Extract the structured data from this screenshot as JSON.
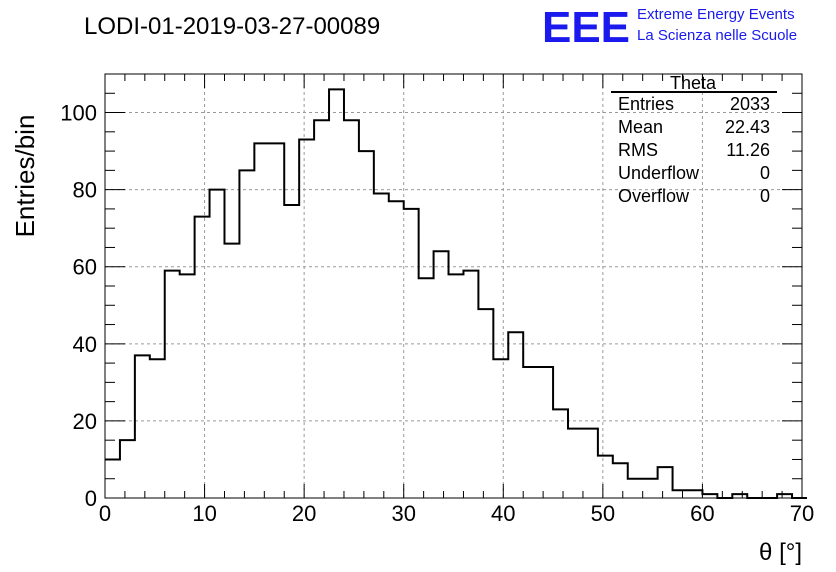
{
  "logo": {
    "mark": "EEE",
    "line1": "Extreme Energy Events",
    "line2": "La Scienza nelle Scuole",
    "color": "#1a1aee"
  },
  "stats": {
    "title": "Theta",
    "rows": [
      {
        "label": "Entries",
        "value": "2033"
      },
      {
        "label": "Mean",
        "value": "22.43"
      },
      {
        "label": "RMS",
        "value": "11.26"
      },
      {
        "label": "Underflow",
        "value": "0"
      },
      {
        "label": "Overflow",
        "value": "0"
      }
    ]
  },
  "chart_data": {
    "type": "bar",
    "title": "LODI-01-2019-03-27-00089",
    "xlabel": "θ [°]",
    "ylabel": "Entries/bin",
    "xlim": [
      0,
      70
    ],
    "ylim": [
      0,
      110
    ],
    "grid": true,
    "bin_width": 1.5,
    "x_ticks": [
      "0",
      "10",
      "20",
      "30",
      "40",
      "50",
      "60",
      "70"
    ],
    "y_ticks": [
      "0",
      "20",
      "40",
      "60",
      "80",
      "100"
    ],
    "values": [
      10,
      15,
      37,
      36,
      59,
      58,
      73,
      80,
      66,
      85,
      92,
      92,
      76,
      93,
      98,
      106,
      98,
      90,
      79,
      77,
      75,
      57,
      64,
      58,
      59,
      49,
      36,
      43,
      34,
      34,
      23,
      18,
      18,
      11,
      9,
      5,
      5,
      8,
      2,
      2,
      1,
      0,
      1,
      0,
      0,
      1,
      0
    ]
  }
}
